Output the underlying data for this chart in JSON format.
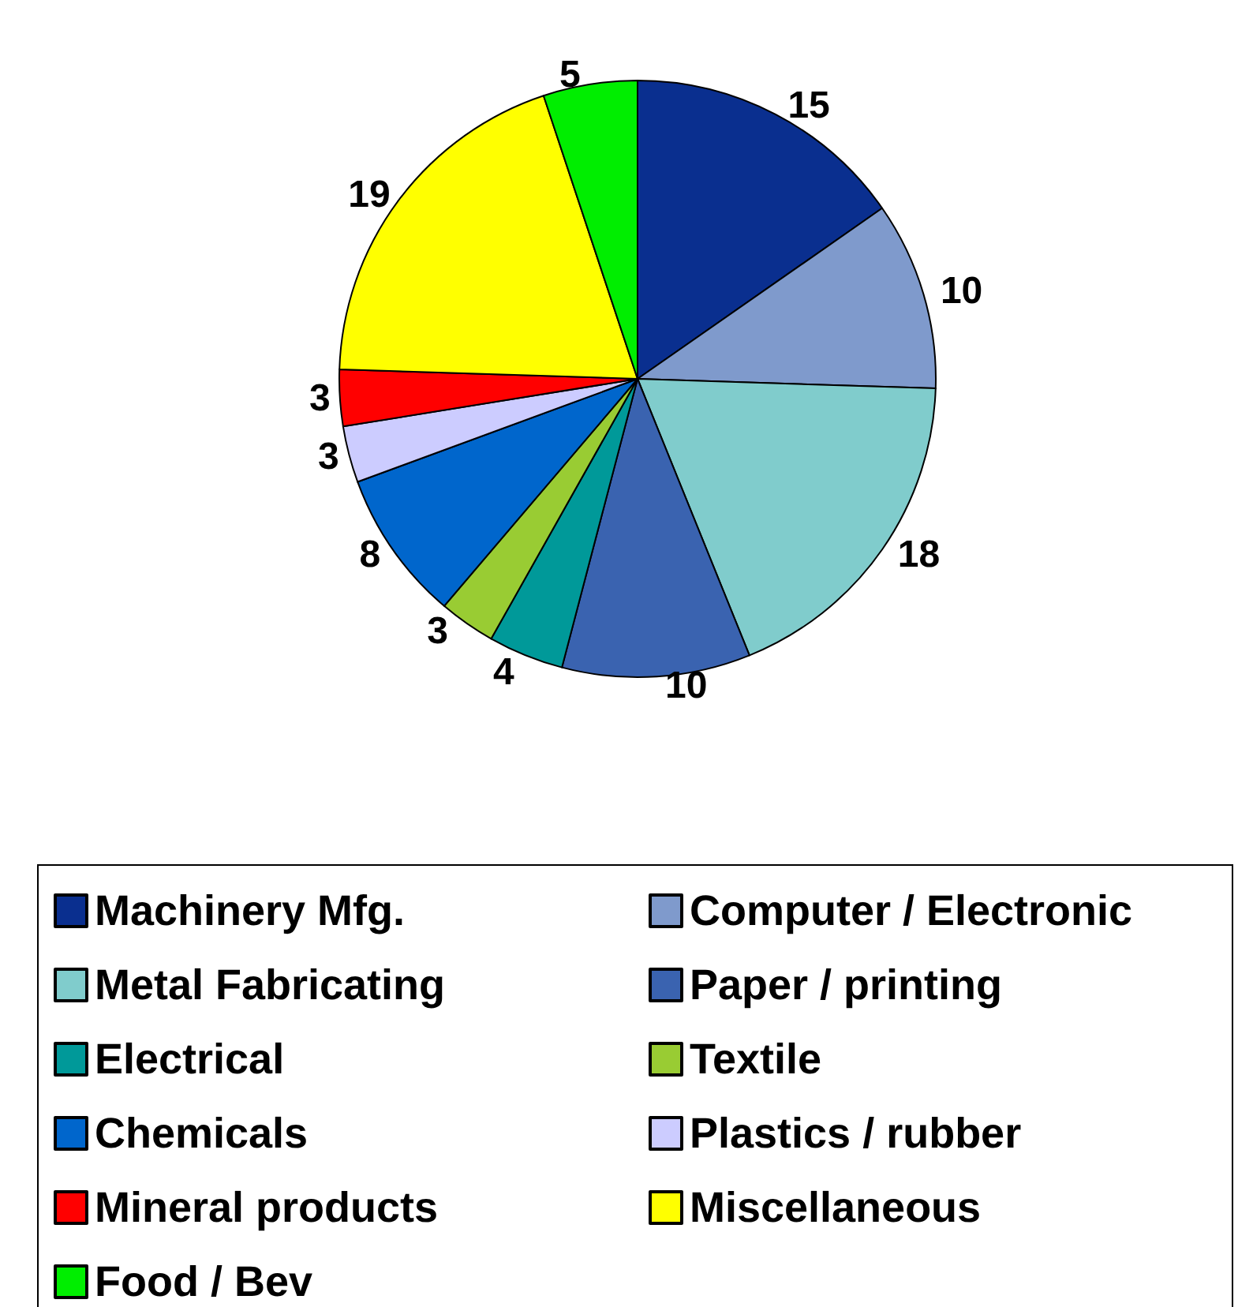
{
  "chart_data": {
    "type": "pie",
    "categories": [
      "Machinery Mfg.",
      "Computer / Electronic",
      "Metal Fabricating",
      "Paper / printing",
      "Electrical",
      "Textile",
      "Chemicals",
      "Plastics / rubber",
      "Mineral products",
      "Miscellaneous",
      "Food / Bev"
    ],
    "values": [
      15,
      10,
      18,
      10,
      4,
      3,
      8,
      3,
      3,
      19,
      5
    ],
    "colors": [
      "#0a2f8f",
      "#7f9acc",
      "#80cccc",
      "#3a63b0",
      "#009999",
      "#99cc33",
      "#0066cc",
      "#ccccff",
      "#ff0000",
      "#ffff00",
      "#00ee00"
    ],
    "data_labels": true,
    "legend": "bottom"
  }
}
